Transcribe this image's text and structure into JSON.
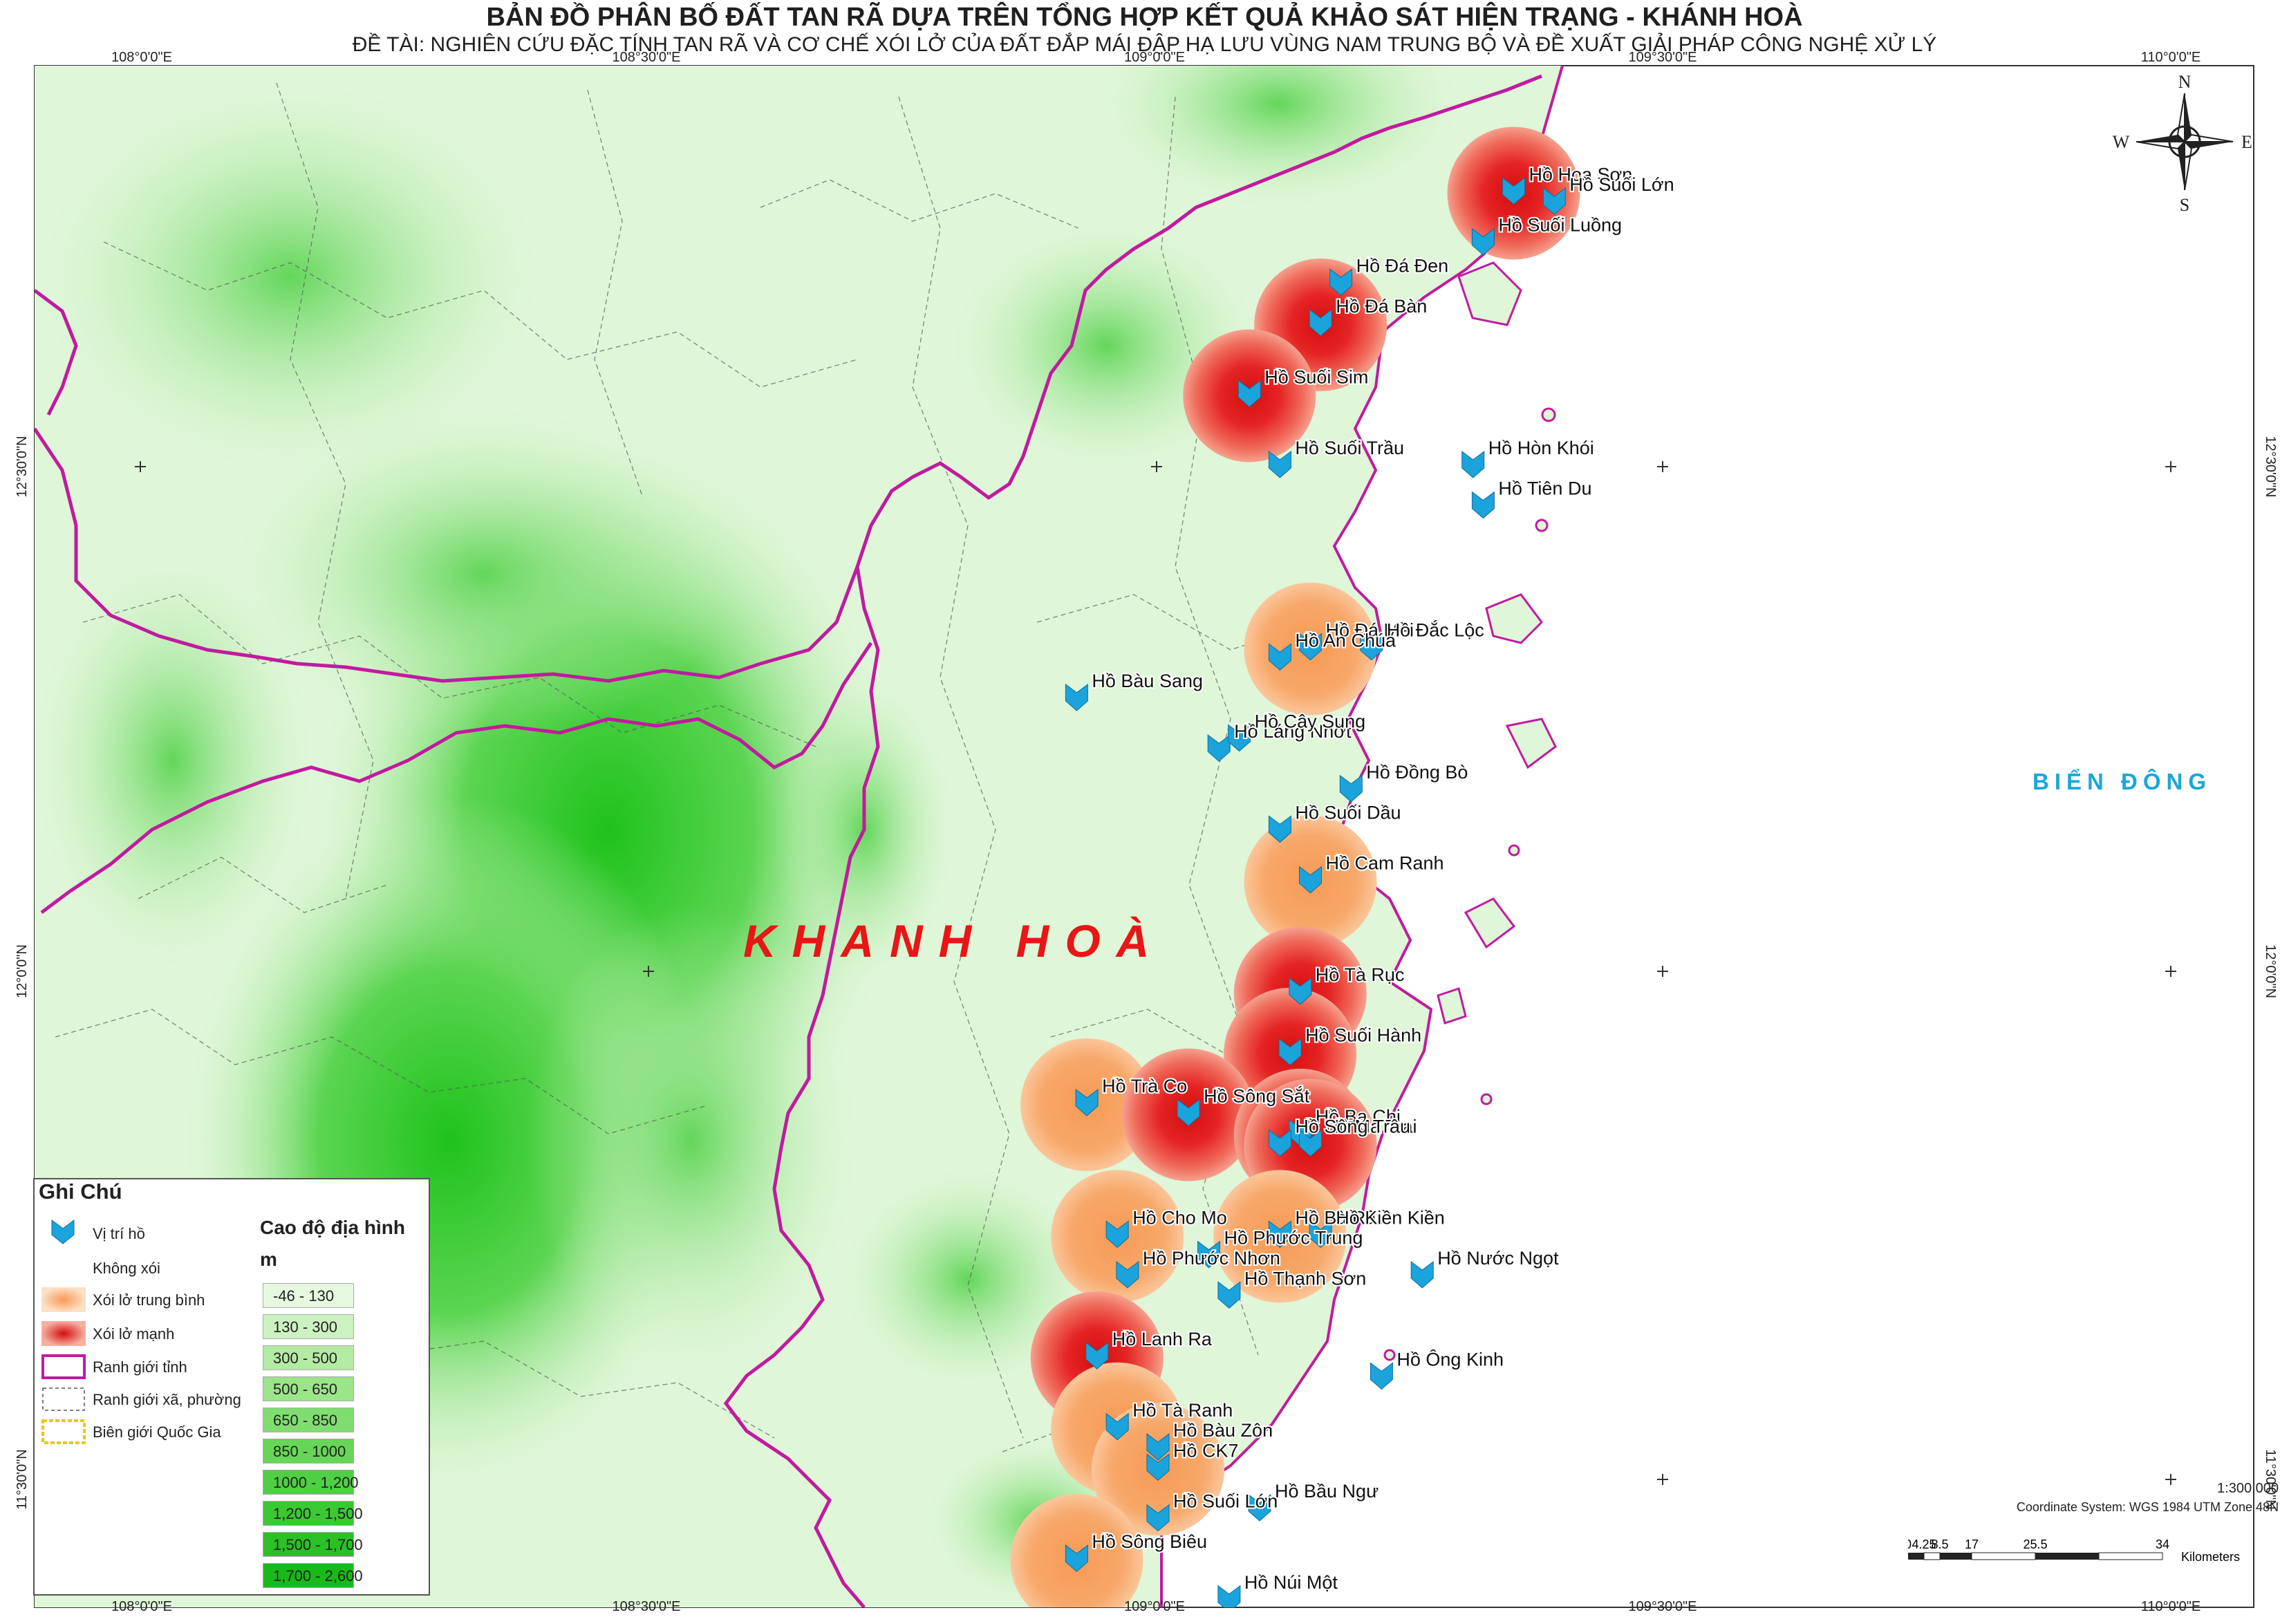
{
  "title": "BẢN ĐỒ PHÂN BỐ ĐẤT TAN RÃ DỰA TRÊN TỔNG HỢP KẾT QUẢ KHẢO SÁT HIỆN TRẠNG - KHÁNH HOÀ",
  "subtitle": "ĐỀ TÀI: NGHIÊN CỨU ĐẶC TÍNH TAN RÃ VÀ CƠ CHẾ XÓI LỞ CỦA ĐẤT ĐẮP MÁI ĐẬP HẠ LƯU VÙNG NAM TRUNG BỘ VÀ ĐỀ XUẤT GIẢI PHÁP CÔNG NGHỆ XỬ LÝ",
  "region_label": "KHANH HOÀ",
  "sea_label": "BIỂN ĐÔNG",
  "graticule": {
    "lon_labels": [
      "108°0'0\"E",
      "108°30'0\"E",
      "109°0'0\"E",
      "109°30'0\"E",
      "110°0'0\"E"
    ],
    "lat_labels": [
      "12°30'0\"N",
      "12°0'0\"N",
      "11°30'0\"N"
    ]
  },
  "compass": {
    "n": "N",
    "s": "S",
    "e": "E",
    "w": "W"
  },
  "colors": {
    "boundary_province": "#c21aa0",
    "marker": "#1ba3dc",
    "erosion_medium": "#f7a86a",
    "erosion_strong": "#e52424",
    "sea_label": "#19a7d8",
    "region_label": "#e81616"
  },
  "legend": {
    "title": "Ghi Chú",
    "items": [
      {
        "label": "Vị trí hồ",
        "icon": "lake-marker-icon"
      },
      {
        "label": "Không xói",
        "icon": "none"
      },
      {
        "label": "Xói lở trung bình",
        "icon": "medium-erosion-icon"
      },
      {
        "label": "Xói lở mạnh",
        "icon": "strong-erosion-icon"
      },
      {
        "label": "Ranh giới tỉnh",
        "icon": "province-boundary-icon"
      },
      {
        "label": "Ranh giới xã, phường",
        "icon": "commune-boundary-icon"
      },
      {
        "label": "Biên giới Quốc Gia",
        "icon": "national-border-icon"
      }
    ],
    "elevation": {
      "title": "Cao độ địa hình",
      "unit": "m",
      "classes": [
        {
          "label": "-46 - 130",
          "color": "#e6f9e0"
        },
        {
          "label": "130 - 300",
          "color": "#cdf2c1"
        },
        {
          "label": "300 - 500",
          "color": "#b4eba4"
        },
        {
          "label": "500 - 650",
          "color": "#9ae489"
        },
        {
          "label": "650 - 850",
          "color": "#80dd70"
        },
        {
          "label": "850 - 1000",
          "color": "#67d658"
        },
        {
          "label": "1000 - 1,200",
          "color": "#4fcf44"
        },
        {
          "label": "1,200 - 1,500",
          "color": "#3ac833"
        },
        {
          "label": "1,500 - 1,700",
          "color": "#29c126"
        },
        {
          "label": "1,700 - 2,600",
          "color": "#18ba1a"
        }
      ]
    }
  },
  "scale": {
    "ratio": "1:300,000",
    "coord_system": "Coordinate System: WGS 1984 UTM Zone 48N",
    "ticks": [
      "0",
      "4.25",
      "8.5",
      "17",
      "25.5",
      "34"
    ],
    "unit": "Kilometers"
  },
  "lakes": [
    {
      "name": "Hồ Hoa Sơn",
      "lon": 109.35,
      "lat": 12.77,
      "erosion": "strong"
    },
    {
      "name": "Hồ Suối Lớn",
      "lon": 109.39,
      "lat": 12.76,
      "erosion": "none"
    },
    {
      "name": "Hồ Suối Luồng",
      "lon": 109.32,
      "lat": 12.72,
      "erosion": "none"
    },
    {
      "name": "Hồ Đá Đen",
      "lon": 109.18,
      "lat": 12.68,
      "erosion": "none"
    },
    {
      "name": "Hồ Đá Bàn",
      "lon": 109.16,
      "lat": 12.64,
      "erosion": "strong"
    },
    {
      "name": "Hồ Suối Sim",
      "lon": 109.09,
      "lat": 12.57,
      "erosion": "strong"
    },
    {
      "name": "Hồ Suối Trầu",
      "lon": 109.12,
      "lat": 12.5,
      "erosion": "none"
    },
    {
      "name": "Hồ Hòn Khói",
      "lon": 109.31,
      "lat": 12.5,
      "erosion": "none"
    },
    {
      "name": "Hồ Tiên Du",
      "lon": 109.32,
      "lat": 12.46,
      "erosion": "none"
    },
    {
      "name": "Hồ Đá Mài",
      "lon": 109.15,
      "lat": 12.32,
      "erosion": "medium"
    },
    {
      "name": "Hồ Đắc Lộc",
      "lon": 109.21,
      "lat": 12.32,
      "erosion": "none"
    },
    {
      "name": "Hồ An Chúa",
      "lon": 109.12,
      "lat": 12.31,
      "erosion": "none"
    },
    {
      "name": "Hồ Bàu Sang",
      "lon": 108.92,
      "lat": 12.27,
      "erosion": "none"
    },
    {
      "name": "Hồ Láng Nhớt",
      "lon": 109.06,
      "lat": 12.22,
      "erosion": "none"
    },
    {
      "name": "Hồ Cây Sung",
      "lon": 109.08,
      "lat": 12.23,
      "erosion": "none"
    },
    {
      "name": "Hồ Đồng Bò",
      "lon": 109.19,
      "lat": 12.18,
      "erosion": "none"
    },
    {
      "name": "Hồ Suối Dầu",
      "lon": 109.12,
      "lat": 12.14,
      "erosion": "none"
    },
    {
      "name": "Hồ Cam Ranh",
      "lon": 109.15,
      "lat": 12.09,
      "erosion": "medium"
    },
    {
      "name": "Hồ Tà Rục",
      "lon": 109.14,
      "lat": 11.98,
      "erosion": "strong"
    },
    {
      "name": "Hồ Suối Hành",
      "lon": 109.13,
      "lat": 11.92,
      "erosion": "strong"
    },
    {
      "name": "Hồ Trà Co",
      "lon": 108.93,
      "lat": 11.87,
      "erosion": "medium"
    },
    {
      "name": "Hồ Sông Sắt",
      "lon": 109.03,
      "lat": 11.86,
      "erosion": "strong"
    },
    {
      "name": "Hồ Ba Chi",
      "lon": 109.14,
      "lat": 11.84,
      "erosion": "strong"
    },
    {
      "name": "Hồ Ma Trai",
      "lon": 109.15,
      "lat": 11.83,
      "erosion": "strong"
    },
    {
      "name": "Hồ Sông Trâu",
      "lon": 109.12,
      "lat": 11.83,
      "erosion": "none"
    },
    {
      "name": "Hồ Cho Mo",
      "lon": 108.96,
      "lat": 11.74,
      "erosion": "medium"
    },
    {
      "name": "Hồ Bà Râu",
      "lon": 109.12,
      "lat": 11.74,
      "erosion": "medium"
    },
    {
      "name": "Hồ Kiền Kiền",
      "lon": 109.16,
      "lat": 11.74,
      "erosion": "none"
    },
    {
      "name": "Hồ Phước Trung",
      "lon": 109.05,
      "lat": 11.72,
      "erosion": "none"
    },
    {
      "name": "Hồ Nước Ngọt",
      "lon": 109.26,
      "lat": 11.7,
      "erosion": "none"
    },
    {
      "name": "Hồ Phước Nhơn",
      "lon": 108.97,
      "lat": 11.7,
      "erosion": "none"
    },
    {
      "name": "Hồ Thạnh Sơn",
      "lon": 109.07,
      "lat": 11.68,
      "erosion": "none"
    },
    {
      "name": "Hồ Lanh Ra",
      "lon": 108.94,
      "lat": 11.62,
      "erosion": "strong"
    },
    {
      "name": "Hồ Ông Kinh",
      "lon": 109.22,
      "lat": 11.6,
      "erosion": "none"
    },
    {
      "name": "Hồ Tà Ranh",
      "lon": 108.96,
      "lat": 11.55,
      "erosion": "medium"
    },
    {
      "name": "Hồ Bàu Zôn",
      "lon": 109.0,
      "lat": 11.53,
      "erosion": "none"
    },
    {
      "name": "Hồ CK7",
      "lon": 109.0,
      "lat": 11.51,
      "erosion": "medium"
    },
    {
      "name": "Hồ Bầu Ngư",
      "lon": 109.1,
      "lat": 11.47,
      "erosion": "none"
    },
    {
      "name": "Hồ Suối Lớn",
      "lon": 109.0,
      "lat": 11.46,
      "erosion": "none"
    },
    {
      "name": "Hồ Sông Biêu",
      "lon": 108.92,
      "lat": 11.42,
      "erosion": "medium"
    },
    {
      "name": "Hồ Núi Một",
      "lon": 109.07,
      "lat": 11.38,
      "erosion": "none"
    }
  ]
}
